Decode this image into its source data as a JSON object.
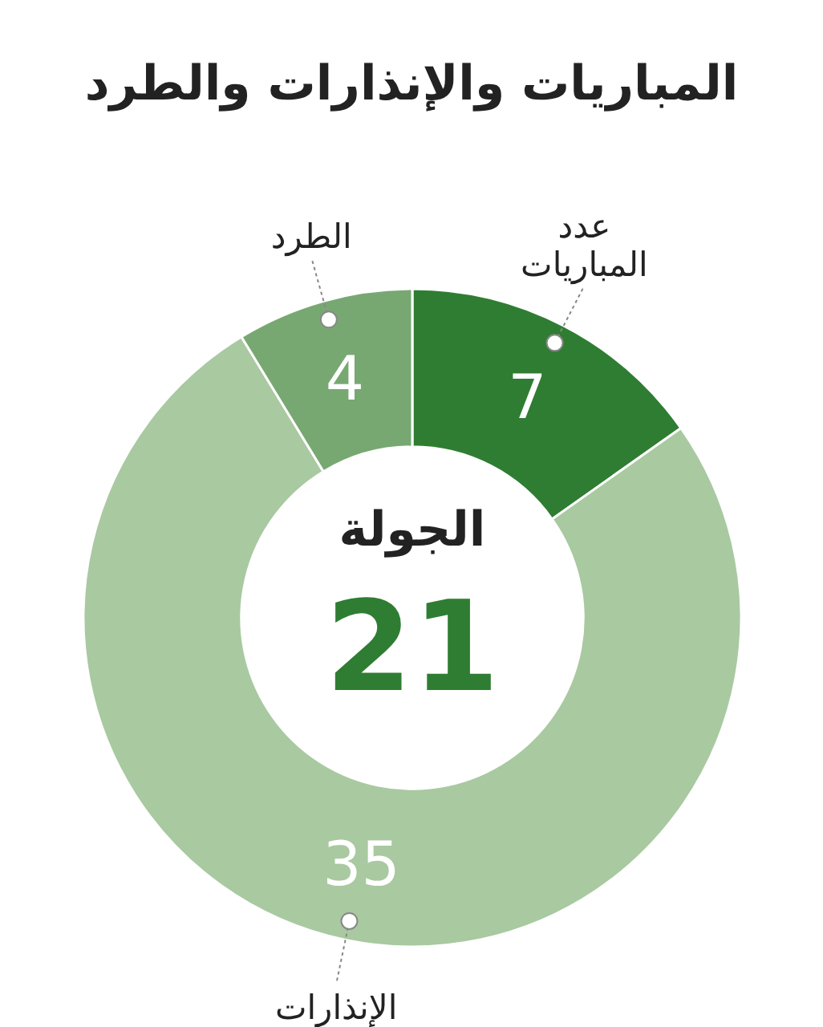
{
  "chart_data": {
    "type": "donut",
    "title": "المباريات والإنذارات والطرد",
    "categories": [
      "عدد المباريات",
      "الإنذارات",
      "الطرد"
    ],
    "values": [
      7,
      35,
      4
    ],
    "colors": [
      "#2f7d32",
      "#a9c9a1",
      "#78a872"
    ],
    "data_labels": true,
    "annotations": [
      "الجولة",
      "21"
    ]
  }
}
